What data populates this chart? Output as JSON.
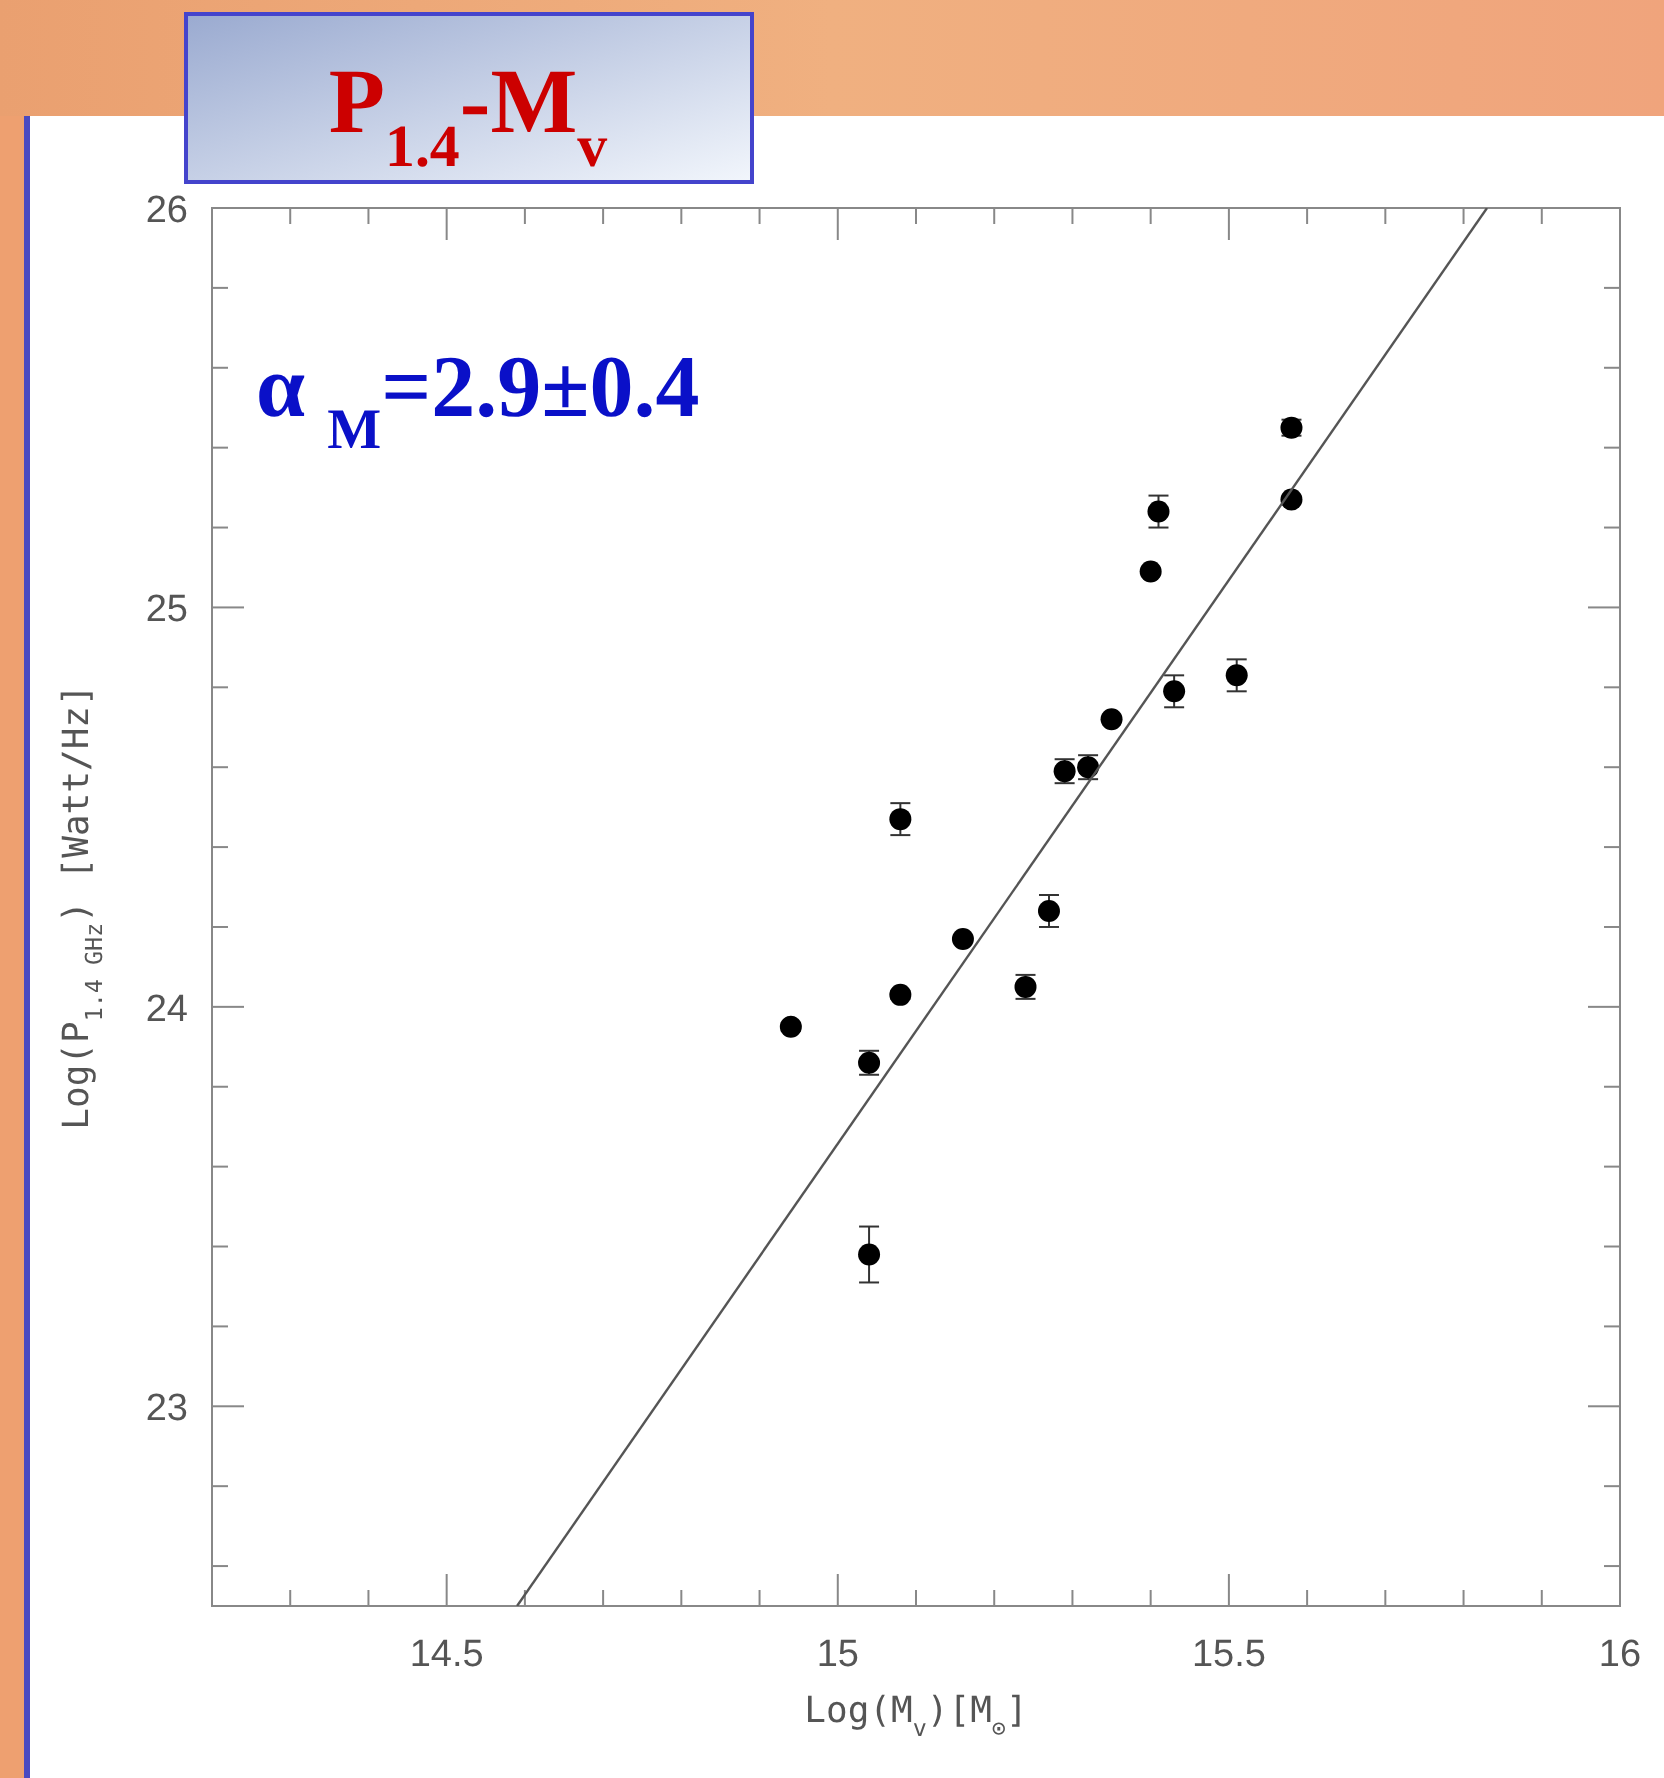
{
  "chart_data": {
    "type": "scatter",
    "title": "P$_{1.4}$-M$_{v}$",
    "xlabel": "Log(M$_{v}$)[M$_{⊙}$]",
    "ylabel": "Log(P$_{1.4 GHz}$) [Watt/Hz]",
    "annotations": [
      "α $_{M}$=2.9±0.4"
    ],
    "xlim": [
      14.2,
      16
    ],
    "ylim": [
      22.5,
      26
    ],
    "xticks": [
      {
        "value": 14.3,
        "label": null
      },
      {
        "value": 14.4,
        "label": null
      },
      14.5,
      {
        "value": 14.6,
        "label": null
      },
      {
        "value": 14.7,
        "label": null
      },
      {
        "value": 14.8,
        "label": null
      },
      {
        "value": 14.9,
        "label": null
      },
      15,
      {
        "value": 15.1,
        "label": null
      },
      {
        "value": 15.2,
        "label": null
      },
      {
        "value": 15.3,
        "label": null
      },
      {
        "value": 15.4,
        "label": null
      },
      15.5,
      {
        "value": 15.6,
        "label": null
      },
      {
        "value": 15.7,
        "label": null
      },
      {
        "value": 15.8,
        "label": null
      },
      {
        "value": 15.9,
        "label": null
      },
      16
    ],
    "yticks": [
      {
        "value": 22.6,
        "label": null
      },
      {
        "value": 22.8,
        "label": null
      },
      23,
      {
        "value": 23.2,
        "label": null
      },
      {
        "value": 23.4,
        "label": null
      },
      {
        "value": 23.6,
        "label": null
      },
      {
        "value": 23.8,
        "label": null
      },
      24,
      {
        "value": 24.2,
        "label": null
      },
      {
        "value": 24.4,
        "label": null
      },
      {
        "value": 24.6,
        "label": null
      },
      {
        "value": 24.8,
        "label": null
      },
      25,
      {
        "value": 25.2,
        "label": null
      },
      {
        "value": 25.4,
        "label": null
      },
      {
        "value": 25.6,
        "label": null
      },
      {
        "value": 25.8,
        "label": null
      },
      26
    ],
    "grid": false,
    "series": [
      {
        "marker": "circle",
        "color": "#000000",
        "x": [
          14.94,
          15.04,
          15.04,
          15.08,
          15.08,
          15.16,
          15.24,
          15.27,
          15.29,
          15.32,
          15.35,
          15.4,
          15.41,
          15.43,
          15.51,
          15.58,
          15.58
        ],
        "values": [
          23.95,
          23.86,
          23.38,
          24.03,
          24.47,
          24.17,
          24.05,
          24.24,
          24.59,
          24.6,
          24.72,
          25.09,
          25.24,
          24.79,
          24.83,
          25.45,
          25.27
        ],
        "errors": [
          0.01,
          0.03,
          0.07,
          0.01,
          0.04,
          null,
          0.03,
          0.04,
          0.03,
          0.03,
          null,
          null,
          0.04,
          0.04,
          0.04,
          0.02,
          null
        ]
      },
      {
        "type": "line",
        "color": "#555555",
        "x": [
          14.59,
          15.83
        ],
        "values": [
          22.5,
          26
        ],
        "line_style": "solid"
      }
    ]
  }
}
